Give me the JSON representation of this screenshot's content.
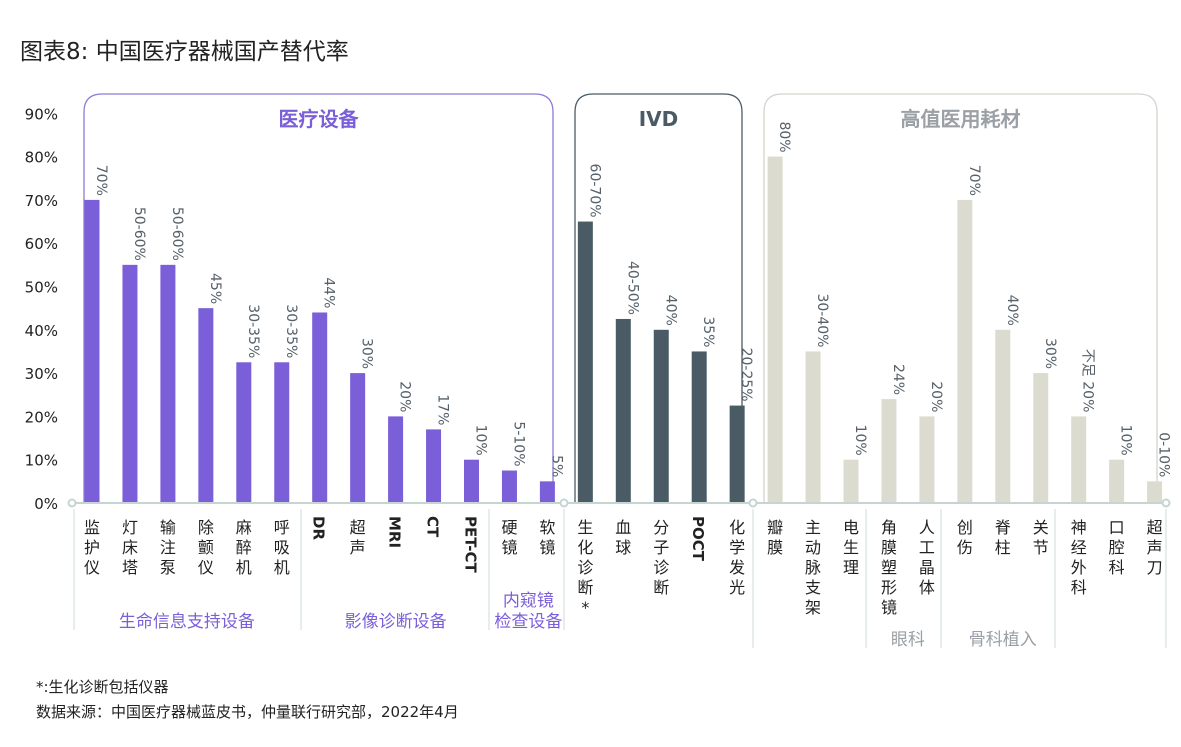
{
  "title": "图表8: 中国医疗器械国产替代率",
  "footnote": "*:生化诊断包括仪器",
  "source": "数据来源：中国医疗器械蓝皮书，仲量联行研究部，2022年4月",
  "colors": {
    "medical": "#7b5fd9",
    "ivd": "#4a5b66",
    "consumables": "#dcdbd0",
    "medical_border": "#8f79d6",
    "ivd_border": "#4a5b66",
    "consumables_border": "#d4d4cc",
    "axis": "#c5d6d2",
    "label": "#56616a",
    "subgroup_purple": "#7b5fd9",
    "subgroup_gray": "#9aa0a5"
  },
  "chart_data": {
    "type": "bar",
    "ylim": [
      0,
      90
    ],
    "yticks": [
      "0%",
      "10%",
      "20%",
      "30%",
      "40%",
      "50%",
      "60%",
      "70%",
      "80%",
      "90%"
    ],
    "groups": [
      {
        "name": "医疗设备",
        "color_key": "medical"
      },
      {
        "name": "IVD",
        "color_key": "ivd"
      },
      {
        "name": "高值医用耗材",
        "color_key": "consumables"
      }
    ],
    "bars": [
      {
        "category": "监护仪",
        "value": 70,
        "label": "70%",
        "group": 0
      },
      {
        "category": "灯床塔",
        "value": 55,
        "label": "50-60%",
        "group": 0
      },
      {
        "category": "输注泵",
        "value": 55,
        "label": "50-60%",
        "group": 0
      },
      {
        "category": "除颤仪",
        "value": 45,
        "label": "45%",
        "group": 0
      },
      {
        "category": "麻醉机",
        "value": 32.5,
        "label": "30-35%",
        "group": 0
      },
      {
        "category": "呼吸机",
        "value": 32.5,
        "label": "30-35%",
        "group": 0
      },
      {
        "category": "DR",
        "value": 44,
        "label": "44%",
        "group": 0
      },
      {
        "category": "超声",
        "value": 30,
        "label": "30%",
        "group": 0
      },
      {
        "category": "MRI",
        "value": 20,
        "label": "20%",
        "group": 0
      },
      {
        "category": "CT",
        "value": 17,
        "label": "17%",
        "group": 0
      },
      {
        "category": "PET-CT",
        "value": 10,
        "label": "10%",
        "group": 0
      },
      {
        "category": "硬镜",
        "value": 7.5,
        "label": "5-10%",
        "group": 0
      },
      {
        "category": "软镜",
        "value": 5,
        "label": "5%",
        "group": 0
      },
      {
        "category": "生化诊断*",
        "value": 65,
        "label": "60-70%",
        "group": 1
      },
      {
        "category": "血球",
        "value": 42.5,
        "label": "40-50%",
        "group": 1
      },
      {
        "category": "分子诊断",
        "value": 40,
        "label": "40%",
        "group": 1
      },
      {
        "category": "POCT",
        "value": 35,
        "label": "35%",
        "group": 1
      },
      {
        "category": "化学发光",
        "value": 22.5,
        "label": "20-25%",
        "group": 1
      },
      {
        "category": "瓣膜",
        "value": 80,
        "label": "80%",
        "group": 2
      },
      {
        "category": "主动脉支架",
        "value": 35,
        "label": "30-40%",
        "group": 2
      },
      {
        "category": "电生理",
        "value": 10,
        "label": "10%",
        "group": 2
      },
      {
        "category": "角膜塑形镜",
        "value": 24,
        "label": "24%",
        "group": 2
      },
      {
        "category": "人工晶体",
        "value": 20,
        "label": "20%",
        "group": 2
      },
      {
        "category": "创伤",
        "value": 70,
        "label": "70%",
        "group": 2
      },
      {
        "category": "脊柱",
        "value": 40,
        "label": "40%",
        "group": 2
      },
      {
        "category": "关节",
        "value": 30,
        "label": "30%",
        "group": 2
      },
      {
        "category": "神经外科",
        "value": 20,
        "label": "不足 20%",
        "group": 2
      },
      {
        "category": "口腔科",
        "value": 10,
        "label": "10%",
        "group": 2
      },
      {
        "category": "超声刀",
        "value": 5,
        "label": "0-10%",
        "group": 2
      }
    ],
    "subgroups": [
      {
        "name": "生命信息支持设备",
        "from": 0,
        "to": 5,
        "style": "purple"
      },
      {
        "name": "影像诊断设备",
        "from": 6,
        "to": 10,
        "style": "purple"
      },
      {
        "name": "内窥镜 检查设备",
        "from": 11,
        "to": 12,
        "style": "purple"
      },
      {
        "name": "眼科",
        "from": 21,
        "to": 22,
        "style": "gray"
      },
      {
        "name": "骨科植入",
        "from": 23,
        "to": 25,
        "style": "gray"
      }
    ]
  }
}
